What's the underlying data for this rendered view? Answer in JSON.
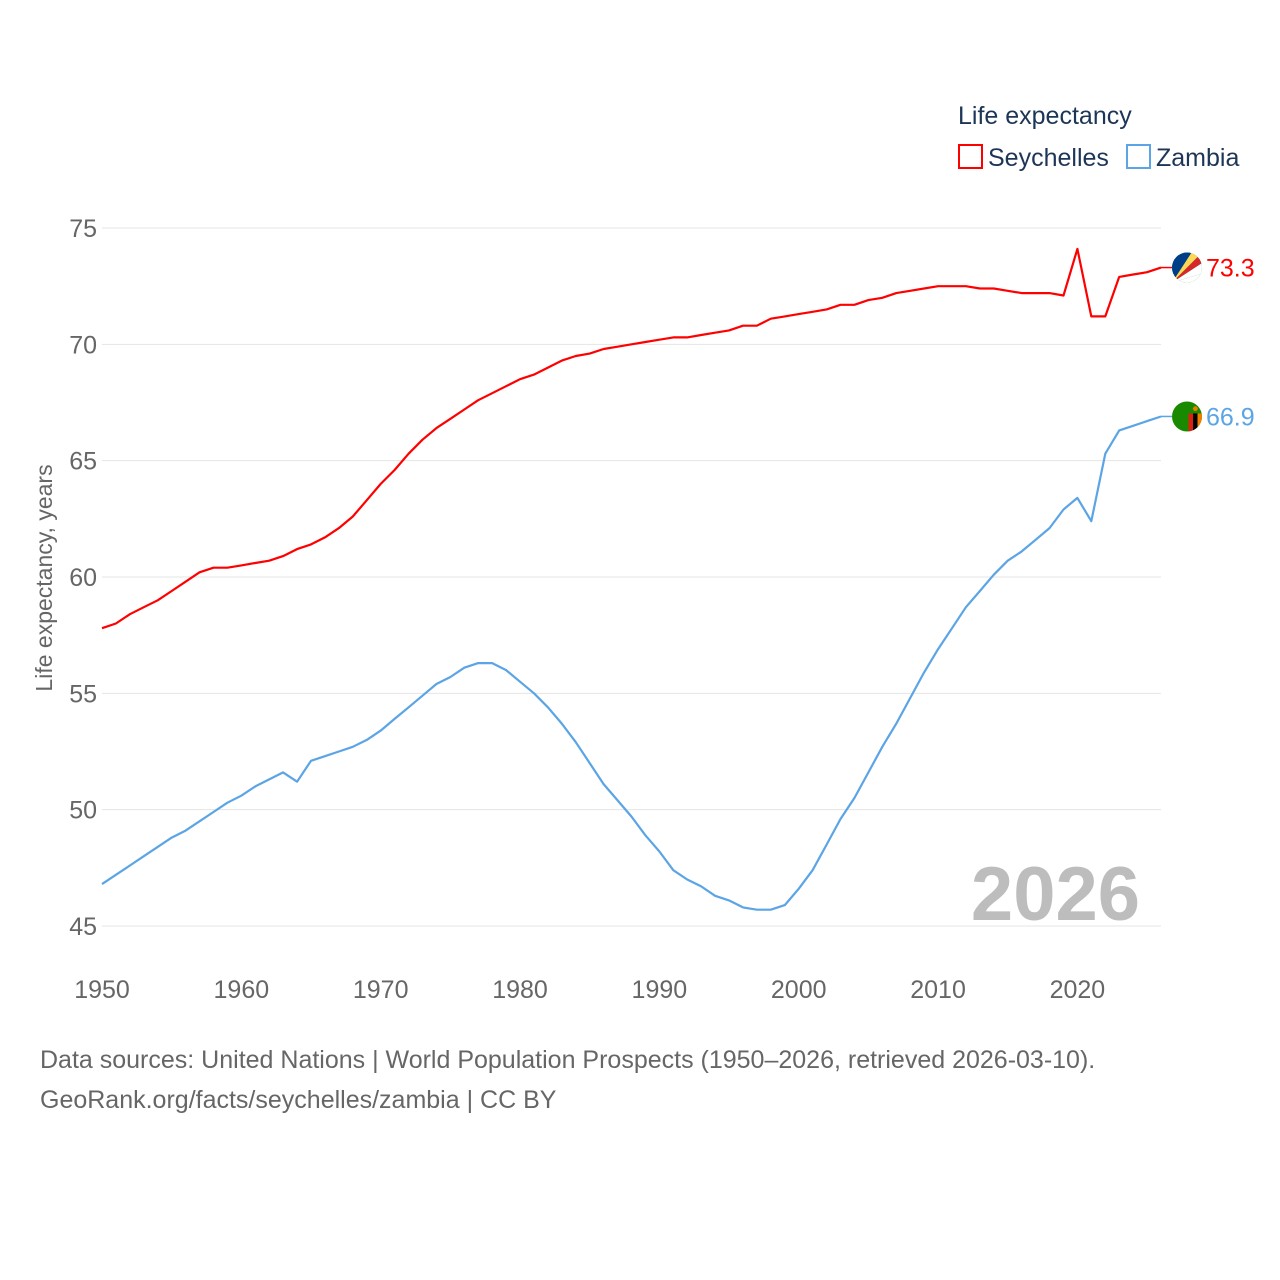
{
  "chart_data": {
    "type": "line",
    "ylabel": "Life expectancy, years",
    "xlabel": "",
    "legend_title": "Life expectancy",
    "legend_position": "top-right",
    "year_label": "2026",
    "xlim": [
      1950,
      2026
    ],
    "ylim": [
      45,
      75
    ],
    "x_ticks": [
      1950,
      1960,
      1970,
      1980,
      1990,
      2000,
      2010,
      2020
    ],
    "y_ticks": [
      45,
      50,
      55,
      60,
      65,
      70,
      75
    ],
    "grid": true,
    "x": [
      1950,
      1951,
      1952,
      1953,
      1954,
      1955,
      1956,
      1957,
      1958,
      1959,
      1960,
      1961,
      1962,
      1963,
      1964,
      1965,
      1966,
      1967,
      1968,
      1969,
      1970,
      1971,
      1972,
      1973,
      1974,
      1975,
      1976,
      1977,
      1978,
      1979,
      1980,
      1981,
      1982,
      1983,
      1984,
      1985,
      1986,
      1987,
      1988,
      1989,
      1990,
      1991,
      1992,
      1993,
      1994,
      1995,
      1996,
      1997,
      1998,
      1999,
      2000,
      2001,
      2002,
      2003,
      2004,
      2005,
      2006,
      2007,
      2008,
      2009,
      2010,
      2011,
      2012,
      2013,
      2014,
      2015,
      2016,
      2017,
      2018,
      2019,
      2020,
      2021,
      2022,
      2023,
      2024,
      2025,
      2026
    ],
    "series": [
      {
        "name": "Seychelles",
        "color": "#ff0000",
        "end_label": "73.3",
        "flag": "seychelles-flag",
        "values": [
          57.8,
          58.0,
          58.4,
          58.7,
          59.0,
          59.4,
          59.8,
          60.2,
          60.4,
          60.4,
          60.5,
          60.6,
          60.7,
          60.9,
          61.2,
          61.4,
          61.7,
          62.1,
          62.6,
          63.3,
          64.0,
          64.6,
          65.3,
          65.9,
          66.4,
          66.8,
          67.2,
          67.6,
          67.9,
          68.2,
          68.5,
          68.7,
          69.0,
          69.3,
          69.5,
          69.6,
          69.8,
          69.9,
          70.0,
          70.1,
          70.2,
          70.3,
          70.3,
          70.4,
          70.5,
          70.6,
          70.8,
          70.8,
          71.1,
          71.2,
          71.3,
          71.4,
          71.5,
          71.7,
          71.7,
          71.9,
          72.0,
          72.2,
          72.3,
          72.4,
          72.5,
          72.5,
          72.5,
          72.4,
          72.4,
          72.3,
          72.2,
          72.2,
          72.2,
          72.1,
          74.1,
          71.2,
          71.2,
          72.9,
          73.0,
          73.1,
          73.3
        ]
      },
      {
        "name": "Zambia",
        "color": "#5ba4e5",
        "end_label": "66.9",
        "flag": "zambia-flag",
        "values": [
          46.8,
          47.2,
          47.6,
          48.0,
          48.4,
          48.8,
          49.1,
          49.5,
          49.9,
          50.3,
          50.6,
          51.0,
          51.3,
          51.6,
          51.2,
          52.1,
          52.3,
          52.5,
          52.7,
          53.0,
          53.4,
          53.9,
          54.4,
          54.9,
          55.4,
          55.7,
          56.1,
          56.3,
          56.3,
          56.0,
          55.5,
          55.0,
          54.4,
          53.7,
          52.9,
          52.0,
          51.1,
          50.4,
          49.7,
          48.9,
          48.2,
          47.4,
          47.0,
          46.7,
          46.3,
          46.1,
          45.8,
          45.7,
          45.7,
          45.9,
          46.6,
          47.4,
          48.5,
          49.6,
          50.5,
          51.6,
          52.7,
          53.7,
          54.8,
          55.9,
          56.9,
          57.8,
          58.7,
          59.4,
          60.1,
          60.7,
          61.1,
          61.6,
          62.1,
          62.9,
          63.4,
          62.4,
          65.3,
          66.3,
          66.5,
          66.7,
          66.9
        ]
      }
    ]
  },
  "footer": {
    "sources": "Data sources: United Nations | World Population Prospects (1950–2026, retrieved 2026-03-10).",
    "attribution": "GeoRank.org/facts/seychelles/zambia | CC BY"
  }
}
